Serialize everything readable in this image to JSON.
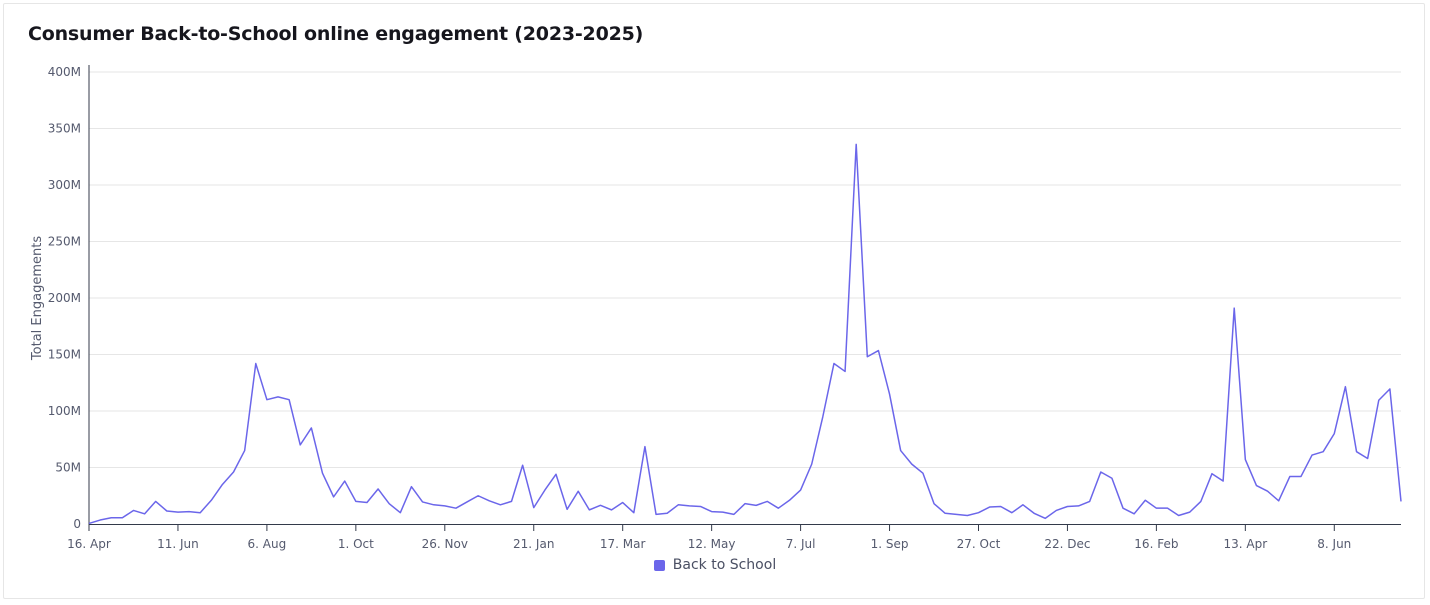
{
  "title": "Consumer Back-to-School online engagement (2023-2025)",
  "chart_data": {
    "type": "line",
    "title": "Consumer Back-to-School online engagement (2023-2025)",
    "xlabel": "",
    "ylabel": "Total Engagements",
    "ylim": [
      0,
      400000000
    ],
    "y_ticks": [
      "0",
      "50M",
      "100M",
      "150M",
      "200M",
      "250M",
      "300M",
      "350M",
      "400M"
    ],
    "x_ticks": [
      "16. Apr",
      "11. Jun",
      "6. Aug",
      "1. Oct",
      "26. Nov",
      "21. Jan",
      "17. Mar",
      "12. May",
      "7. Jul",
      "1. Sep",
      "27. Oct",
      "22. Dec",
      "16. Feb",
      "13. Apr",
      "8. Jun"
    ],
    "grid": true,
    "legend": "bottom-center",
    "series": [
      {
        "name": "Back to School",
        "color": "#6b66ea",
        "values": [
          0.5,
          3.5,
          5.5,
          5.5,
          12,
          9,
          20,
          11.5,
          10.5,
          11,
          10,
          21,
          35,
          46,
          65,
          142,
          110,
          112.5,
          110,
          70,
          85,
          45,
          24,
          38,
          20,
          19,
          31,
          18,
          10,
          33,
          19.5,
          17,
          16,
          14,
          19.5,
          25,
          20.5,
          17,
          20,
          52,
          14.5,
          30,
          44,
          13,
          29,
          12.5,
          16.5,
          12.5,
          19,
          10,
          68.5,
          8.5,
          9.5,
          17,
          16,
          15.5,
          11,
          10.5,
          8.5,
          18,
          16.5,
          20,
          14,
          21,
          30,
          53,
          95,
          142,
          135,
          336,
          148,
          153.5,
          115,
          65,
          53,
          45,
          18,
          9.5,
          8.5,
          7.5,
          10,
          15,
          15.5,
          10,
          17,
          9.5,
          5,
          12,
          15.5,
          16,
          20,
          46,
          40.5,
          14,
          9,
          21,
          14,
          14,
          7.5,
          10.5,
          20,
          44.5,
          38,
          191,
          57,
          34,
          29,
          20.5,
          42,
          42,
          61,
          64,
          80,
          121.5,
          64,
          58,
          109.5,
          119.5,
          20
        ]
      }
    ]
  }
}
